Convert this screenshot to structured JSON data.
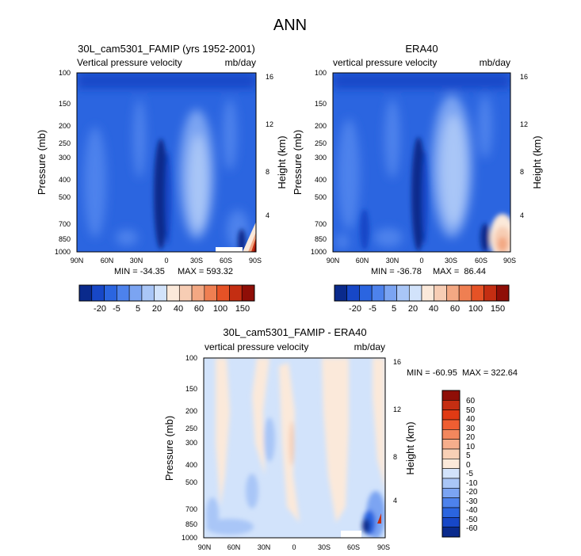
{
  "chart_data": [
    {
      "type": "contour",
      "main_title": "ANN",
      "title": "30L_cam5301_FAMIP (yrs 1952-2001)",
      "left_label": "Vertical pressure velocity",
      "right_label": "mb/day",
      "ylabel": "Pressure (mb)",
      "y2label": "Height (km)",
      "x_ticks": [
        "90N",
        "60N",
        "30N",
        "0",
        "30S",
        "60S",
        "90S"
      ],
      "y_ticks": [
        "100",
        "150",
        "200",
        "250",
        "300",
        "400",
        "500",
        "700",
        "850",
        "1000"
      ],
      "y2_ticks": [
        "16",
        "12",
        "8",
        "4"
      ],
      "min_label": "MIN = -34.35",
      "max_label": "MAX = 593.32",
      "colorbar_labels": [
        "-20",
        "-5",
        "5",
        "20",
        "40",
        "60",
        "100",
        "150"
      ]
    },
    {
      "type": "contour",
      "title": "ERA40",
      "left_label": "vertical pressure velocity",
      "right_label": "mb/day",
      "ylabel": "Pressure (mb)",
      "y2label": "Height (km)",
      "x_ticks": [
        "90N",
        "60N",
        "30N",
        "0",
        "30S",
        "60S",
        "90S"
      ],
      "y_ticks": [
        "100",
        "150",
        "200",
        "250",
        "300",
        "400",
        "500",
        "700",
        "850",
        "1000"
      ],
      "y2_ticks": [
        "16",
        "12",
        "8",
        "4"
      ],
      "min_label": "MIN = -36.78",
      "max_label": "MAX =  86.44",
      "colorbar_labels": [
        "-20",
        "-5",
        "5",
        "20",
        "40",
        "60",
        "100",
        "150"
      ]
    },
    {
      "type": "contour",
      "title": "30L_cam5301_FAMIP - ERA40",
      "left_label": "vertical pressure velocity",
      "right_label": "mb/day",
      "ylabel": "Pressure (mb)",
      "y2label": "Height (km)",
      "x_ticks": [
        "90N",
        "60N",
        "30N",
        "0",
        "30S",
        "60S",
        "90S"
      ],
      "y_ticks": [
        "100",
        "150",
        "200",
        "250",
        "300",
        "400",
        "500",
        "700",
        "850",
        "1000"
      ],
      "y2_ticks": [
        "16",
        "12",
        "8",
        "4"
      ],
      "minmax_label": "MIN = -60.95  MAX = 322.64",
      "colorbar_labels": [
        "60",
        "50",
        "40",
        "30",
        "20",
        "10",
        "5",
        "0",
        "-5",
        "-10",
        "-20",
        "-30",
        "-40",
        "-50",
        "-60"
      ]
    }
  ],
  "colors": {
    "abs_scale": [
      "#0a2a8c",
      "#1747c7",
      "#2b65e0",
      "#4d82ec",
      "#7ba4f2",
      "#a9c6f7",
      "#d2e3fb",
      "#fbe9da",
      "#f7cdb4",
      "#f3a883",
      "#ef7f52",
      "#e65226",
      "#c42e12",
      "#8f0e07"
    ],
    "diff_scale": [
      "#8f0e07",
      "#c42e12",
      "#e03a14",
      "#ef5e32",
      "#f3875d",
      "#f6ae8c",
      "#f8d0b6",
      "#fbe9da",
      "#d2e3fb",
      "#a9c6f7",
      "#7ba4f2",
      "#4d82ec",
      "#2b65e0",
      "#1747c7",
      "#0a2a8c"
    ]
  }
}
